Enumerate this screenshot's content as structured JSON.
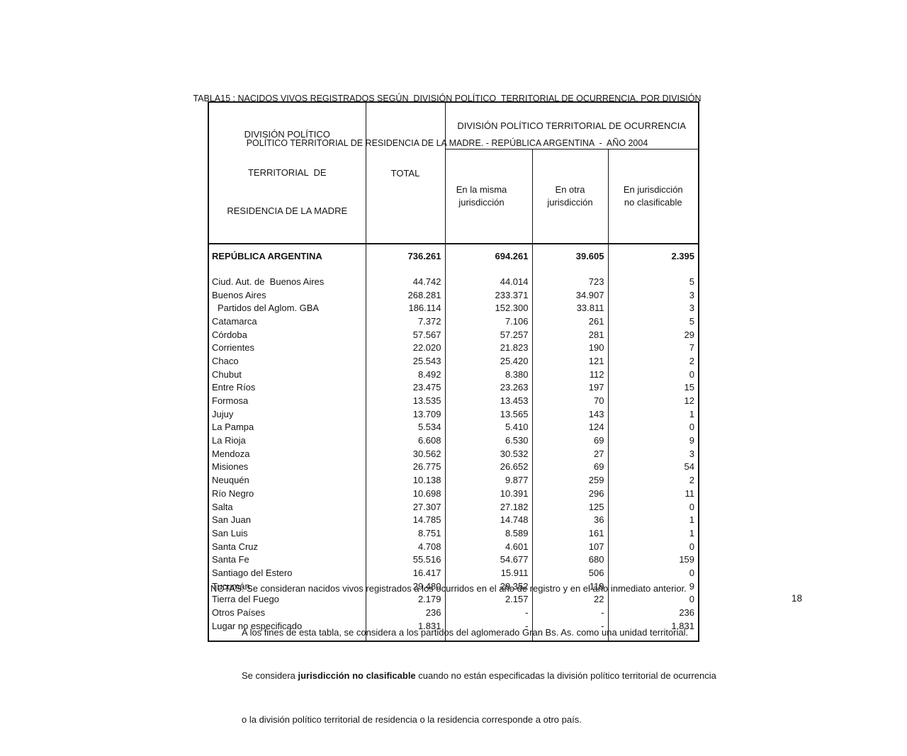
{
  "title": {
    "line1": "TABLA15 : NACIDOS VIVOS REGISTRADOS SEGÚN  DIVISIÓN POLÍTICO  TERRITORIAL DE OCURRENCIA, POR DIVISIÓN",
    "line2": "POLÍTICO TERRITORIAL DE RESIDENCIA DE LA MADRE. - REPÚBLICA ARGENTINA  -  AÑO 2004"
  },
  "table": {
    "header": {
      "residence": [
        "DIVISIÓN POLÍTICO",
        "TERRITORIAL  DE",
        "RESIDENCIA DE LA MADRE"
      ],
      "total": "TOTAL",
      "occurrence_group": "DIVISIÓN POLÍTICO TERRITORIAL DE OCURRENCIA",
      "sub": [
        [
          "En la misma",
          "jurisdicción"
        ],
        [
          "En otra",
          "jurisdicción"
        ],
        [
          "En jurisdicción",
          "no clasificable"
        ]
      ]
    },
    "summary_row": {
      "label": "REPÚBLICA ARGENTINA",
      "values": [
        "736.261",
        "694.261",
        "39.605",
        "2.395"
      ]
    },
    "rows": [
      {
        "label": "Ciud. Aut. de  Buenos Aires",
        "indent": false,
        "values": [
          "44.742",
          "44.014",
          "723",
          "5"
        ]
      },
      {
        "label": "Buenos Aires",
        "indent": false,
        "values": [
          "268.281",
          "233.371",
          "34.907",
          "3"
        ]
      },
      {
        "label": "Partidos del Aglom. GBA",
        "indent": true,
        "values": [
          "186.114",
          "152.300",
          "33.811",
          "3"
        ]
      },
      {
        "label": "Catamarca",
        "indent": false,
        "values": [
          "7.372",
          "7.106",
          "261",
          "5"
        ]
      },
      {
        "label": "Córdoba",
        "indent": false,
        "values": [
          "57.567",
          "57.257",
          "281",
          "29"
        ]
      },
      {
        "label": "Corrientes",
        "indent": false,
        "values": [
          "22.020",
          "21.823",
          "190",
          "7"
        ]
      },
      {
        "label": "Chaco",
        "indent": false,
        "values": [
          "25.543",
          "25.420",
          "121",
          "2"
        ]
      },
      {
        "label": "Chubut",
        "indent": false,
        "values": [
          "8.492",
          "8.380",
          "112",
          "0"
        ]
      },
      {
        "label": "Entre Ríos",
        "indent": false,
        "values": [
          "23.475",
          "23.263",
          "197",
          "15"
        ]
      },
      {
        "label": "Formosa",
        "indent": false,
        "values": [
          "13.535",
          "13.453",
          "70",
          "12"
        ]
      },
      {
        "label": "Jujuy",
        "indent": false,
        "values": [
          "13.709",
          "13.565",
          "143",
          "1"
        ]
      },
      {
        "label": "La Pampa",
        "indent": false,
        "values": [
          "5.534",
          "5.410",
          "124",
          "0"
        ]
      },
      {
        "label": "La Rioja",
        "indent": false,
        "values": [
          "6.608",
          "6.530",
          "69",
          "9"
        ]
      },
      {
        "label": "Mendoza",
        "indent": false,
        "values": [
          "30.562",
          "30.532",
          "27",
          "3"
        ]
      },
      {
        "label": "Misiones",
        "indent": false,
        "values": [
          "26.775",
          "26.652",
          "69",
          "54"
        ]
      },
      {
        "label": "Neuquén",
        "indent": false,
        "values": [
          "10.138",
          "9.877",
          "259",
          "2"
        ]
      },
      {
        "label": "Río Negro",
        "indent": false,
        "values": [
          "10.698",
          "10.391",
          "296",
          "11"
        ]
      },
      {
        "label": "Salta",
        "indent": false,
        "values": [
          "27.307",
          "27.182",
          "125",
          "0"
        ]
      },
      {
        "label": "San Juan",
        "indent": false,
        "values": [
          "14.785",
          "14.748",
          "36",
          "1"
        ]
      },
      {
        "label": "San Luis",
        "indent": false,
        "values": [
          "8.751",
          "8.589",
          "161",
          "1"
        ]
      },
      {
        "label": "Santa Cruz",
        "indent": false,
        "values": [
          "4.708",
          "4.601",
          "107",
          "0"
        ]
      },
      {
        "label": "Santa Fe",
        "indent": false,
        "values": [
          "55.516",
          "54.677",
          "680",
          "159"
        ]
      },
      {
        "label": "Santiago del Estero",
        "indent": false,
        "values": [
          "16.417",
          "15.911",
          "506",
          "0"
        ]
      },
      {
        "label": "Tucumán",
        "indent": false,
        "values": [
          "29.480",
          "29.352",
          "119",
          "9"
        ]
      },
      {
        "label": "Tierra del Fuego",
        "indent": false,
        "values": [
          "2.179",
          "2.157",
          "22",
          "0"
        ]
      },
      {
        "label": "Otros Países",
        "indent": false,
        "values": [
          "236",
          "-",
          "-",
          "236"
        ]
      },
      {
        "label": "Lugar no especificado",
        "indent": false,
        "values": [
          "1.831",
          "-",
          "-",
          "1.831"
        ]
      }
    ]
  },
  "notes": {
    "label": "NOTAS: ",
    "line1": "Se consideran nacidos vivos registrados a los ocurridos en el año de registro y en el año inmediato anterior.",
    "line2": "A los fines de esta tabla, se considera a los partidos del aglomerado Gran Bs. As. como una unidad territorial.",
    "line3_pre": "Se considera ",
    "line3_bold": "jurisdicción no clasificable",
    "line3_post": " cuando no están especificadas la división político territorial de ocurrencia",
    "line4": "o la división político territorial de residencia o la residencia corresponde a otro país."
  },
  "page": {
    "number": "18"
  }
}
